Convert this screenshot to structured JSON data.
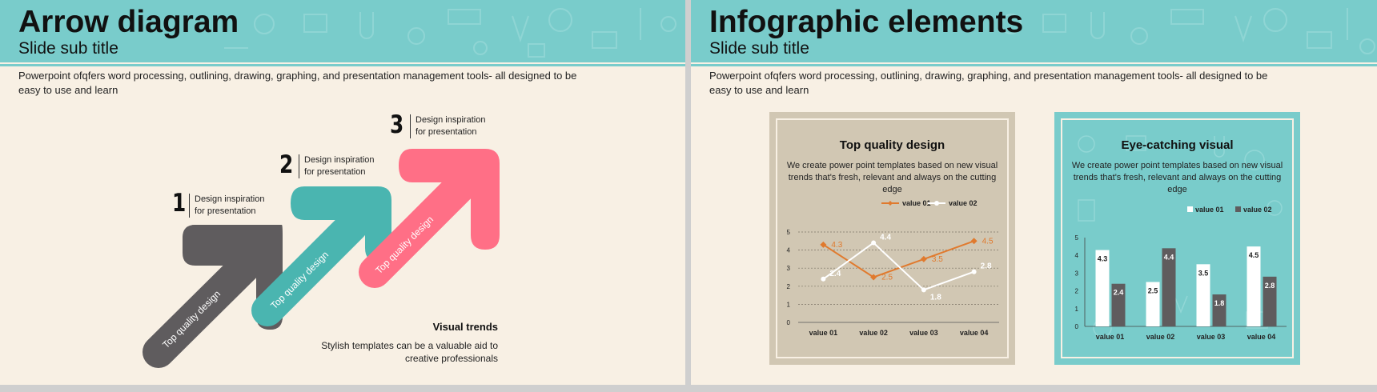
{
  "slide1": {
    "title": "Arrow diagram",
    "subtitle": "Slide sub title",
    "intro": "Powerpoint  ofqfers word processing, outlining, drawing, graphing, and presentation management tools- all designed to be easy to use and learn",
    "steps": [
      {
        "number": "1",
        "text_line1": "Design inspiration",
        "text_line2": "for presentation",
        "arrow_label": "Top quality design",
        "color": "#5f5c5e"
      },
      {
        "number": "2",
        "text_line1": "Design inspiration",
        "text_line2": "for presentation",
        "arrow_label": "Top quality design",
        "color": "#4ab5b0"
      },
      {
        "number": "3",
        "text_line1": "Design inspiration",
        "text_line2": "for presentation",
        "arrow_label": "Top quality design",
        "color": "#ff6f86"
      }
    ],
    "visual_trends": {
      "title": "Visual trends",
      "text": "Stylish  templates can be a valuable aid to creative professionals"
    }
  },
  "slide2": {
    "title": "Infographic elements",
    "subtitle": "Slide sub title",
    "intro": "Powerpoint  ofqfers word processing, outlining, drawing, graphing, and presentation management tools- all designed to be easy to use and learn",
    "card1": {
      "title": "Top quality design",
      "text": "We create power point templates  based on new visual trends that's fresh, relevant and always on the cutting edge"
    },
    "card2": {
      "title": "Eye-catching visual",
      "text": "We create power point templates  based on new visual trends that's fresh, relevant and always on the cutting edge"
    }
  },
  "colors": {
    "teal": "#79cccb",
    "cream": "#f8f0e4",
    "orange": "#e07a2e",
    "dark_gray": "#5f5c5e",
    "pink": "#ff6f86"
  },
  "chart_data": [
    {
      "type": "line",
      "categories": [
        "value 01",
        "value 02",
        "value 03",
        "value 04"
      ],
      "series": [
        {
          "name": "value 01",
          "values": [
            4.3,
            2.5,
            3.5,
            4.5
          ],
          "color": "#e07a2e"
        },
        {
          "name": "value 02",
          "values": [
            2.4,
            4.4,
            1.8,
            2.8
          ],
          "color": "#ffffff"
        }
      ],
      "ylim": [
        0,
        5
      ],
      "yticks": [
        "0",
        "1",
        "2",
        "3",
        "4",
        "5"
      ],
      "grid": true,
      "legend": "top-right"
    },
    {
      "type": "bar",
      "categories": [
        "value 01",
        "value 02",
        "value 03",
        "value 04"
      ],
      "series": [
        {
          "name": "value 01",
          "values": [
            4.3,
            2.5,
            3.5,
            4.5
          ],
          "color": "#ffffff"
        },
        {
          "name": "value 02",
          "values": [
            2.4,
            4.4,
            1.8,
            2.8
          ],
          "color": "#5f5c5e"
        }
      ],
      "ylim": [
        0,
        5
      ],
      "yticks": [
        "0",
        "1",
        "2",
        "3",
        "4",
        "5"
      ],
      "grid": false,
      "legend": "top"
    }
  ]
}
